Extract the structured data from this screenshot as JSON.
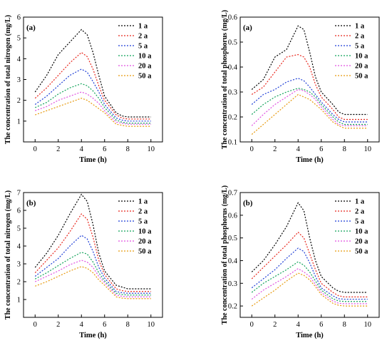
{
  "figure": {
    "legend_entries": [
      "1 a",
      "2 a",
      "5 a",
      "10 a",
      "20 a",
      "50 a"
    ],
    "series_colors": [
      "#000000",
      "#e8281e",
      "#1f3fd6",
      "#12a35a",
      "#e050e0",
      "#e79a0f"
    ]
  },
  "chart_data": [
    {
      "type": "line",
      "panel_label": "(a)",
      "xlabel": "Time (h)",
      "ylabel": "The concentration of total nitrogen (mg/L)",
      "xlim": [
        -1,
        11
      ],
      "ylim": [
        0,
        6
      ],
      "xticks": [
        0,
        2,
        4,
        6,
        8,
        10
      ],
      "yticks": [
        1,
        2,
        3,
        4,
        5,
        6
      ],
      "legend": "top-right",
      "grid": false,
      "x": [
        0,
        1,
        2,
        3,
        4,
        4.5,
        5,
        5.5,
        6,
        7,
        7.5,
        8,
        9,
        10
      ],
      "series": [
        {
          "name": "1 a",
          "values": [
            2.4,
            3.2,
            4.2,
            4.8,
            5.4,
            5.15,
            4.3,
            3.2,
            2.2,
            1.4,
            1.25,
            1.2,
            1.2,
            1.2
          ]
        },
        {
          "name": "2 a",
          "values": [
            2.1,
            2.6,
            3.2,
            3.8,
            4.3,
            4.1,
            3.5,
            2.7,
            2.0,
            1.3,
            1.15,
            1.1,
            1.1,
            1.1
          ]
        },
        {
          "name": "5 a",
          "values": [
            1.8,
            2.2,
            2.7,
            3.2,
            3.5,
            3.35,
            2.9,
            2.4,
            1.8,
            1.15,
            1.05,
            1.0,
            1.0,
            1.0
          ]
        },
        {
          "name": "10 a",
          "values": [
            1.65,
            1.9,
            2.3,
            2.6,
            2.8,
            2.7,
            2.45,
            2.1,
            1.65,
            1.05,
            0.95,
            0.9,
            0.9,
            0.9
          ]
        },
        {
          "name": "20 a",
          "values": [
            1.5,
            1.7,
            2.0,
            2.2,
            2.4,
            2.3,
            2.1,
            1.85,
            1.5,
            0.95,
            0.9,
            0.85,
            0.85,
            0.85
          ]
        },
        {
          "name": "50 a",
          "values": [
            1.3,
            1.5,
            1.7,
            1.9,
            2.1,
            2.0,
            1.8,
            1.6,
            1.4,
            0.85,
            0.8,
            0.75,
            0.75,
            0.75
          ]
        }
      ]
    },
    {
      "type": "line",
      "panel_label": "(a)",
      "xlabel": "Time (h)",
      "ylabel": "The concentration of total phosphorus (mg/L)",
      "xlim": [
        -1,
        11
      ],
      "ylim": [
        0.1,
        0.6
      ],
      "xticks": [
        0,
        2,
        4,
        6,
        8,
        10
      ],
      "yticks": [
        0.1,
        0.2,
        0.3,
        0.4,
        0.5,
        0.6
      ],
      "legend": "top-right",
      "grid": false,
      "x": [
        0,
        1,
        2,
        3,
        4,
        4.5,
        5,
        5.5,
        6,
        7,
        7.5,
        8,
        9,
        10
      ],
      "series": [
        {
          "name": "1 a",
          "values": [
            0.31,
            0.35,
            0.44,
            0.47,
            0.565,
            0.55,
            0.46,
            0.36,
            0.3,
            0.25,
            0.22,
            0.21,
            0.21,
            0.21
          ]
        },
        {
          "name": "2 a",
          "values": [
            0.29,
            0.32,
            0.38,
            0.44,
            0.45,
            0.44,
            0.4,
            0.33,
            0.28,
            0.23,
            0.2,
            0.19,
            0.19,
            0.19
          ]
        },
        {
          "name": "5 a",
          "values": [
            0.25,
            0.29,
            0.31,
            0.34,
            0.355,
            0.345,
            0.32,
            0.29,
            0.26,
            0.21,
            0.19,
            0.18,
            0.18,
            0.18
          ]
        },
        {
          "name": "10 a",
          "values": [
            0.21,
            0.25,
            0.28,
            0.3,
            0.315,
            0.31,
            0.3,
            0.28,
            0.25,
            0.2,
            0.18,
            0.17,
            0.17,
            0.17
          ]
        },
        {
          "name": "20 a",
          "values": [
            0.165,
            0.21,
            0.25,
            0.28,
            0.31,
            0.305,
            0.29,
            0.27,
            0.24,
            0.19,
            0.17,
            0.165,
            0.165,
            0.165
          ]
        },
        {
          "name": "50 a",
          "values": [
            0.13,
            0.17,
            0.21,
            0.25,
            0.29,
            0.28,
            0.27,
            0.25,
            0.23,
            0.18,
            0.165,
            0.155,
            0.155,
            0.155
          ]
        }
      ]
    },
    {
      "type": "line",
      "panel_label": "(b)",
      "xlabel": "Time (h)",
      "ylabel": "The concentration of total nitrogen (mg/L)",
      "xlim": [
        -1,
        11
      ],
      "ylim": [
        0,
        7
      ],
      "xticks": [
        0,
        2,
        4,
        6,
        8,
        10
      ],
      "yticks": [
        1,
        2,
        3,
        4,
        5,
        6,
        7
      ],
      "legend": "top-right",
      "grid": false,
      "x": [
        0,
        1,
        2,
        3,
        4,
        4.5,
        5,
        5.5,
        6,
        7,
        7.5,
        8,
        9,
        10
      ],
      "series": [
        {
          "name": "1 a",
          "values": [
            2.8,
            3.6,
            4.6,
            5.8,
            6.9,
            6.5,
            5.2,
            3.6,
            2.6,
            1.8,
            1.7,
            1.6,
            1.6,
            1.6
          ]
        },
        {
          "name": "2 a",
          "values": [
            2.5,
            3.2,
            3.9,
            4.8,
            5.8,
            5.5,
            4.5,
            3.2,
            2.4,
            1.6,
            1.5,
            1.45,
            1.45,
            1.45
          ]
        },
        {
          "name": "5 a",
          "values": [
            2.3,
            2.8,
            3.3,
            4.0,
            4.6,
            4.4,
            3.7,
            2.8,
            2.2,
            1.45,
            1.38,
            1.35,
            1.35,
            1.35
          ]
        },
        {
          "name": "10 a",
          "values": [
            2.15,
            2.5,
            2.9,
            3.3,
            3.65,
            3.55,
            3.1,
            2.5,
            2.05,
            1.35,
            1.28,
            1.25,
            1.25,
            1.25
          ]
        },
        {
          "name": "20 a",
          "values": [
            2.0,
            2.3,
            2.6,
            2.95,
            3.2,
            3.1,
            2.8,
            2.3,
            1.95,
            1.25,
            1.18,
            1.15,
            1.15,
            1.15
          ]
        },
        {
          "name": "50 a",
          "values": [
            1.75,
            2.0,
            2.3,
            2.6,
            2.85,
            2.75,
            2.5,
            2.1,
            1.8,
            1.15,
            1.08,
            1.05,
            1.05,
            1.05
          ]
        }
      ]
    },
    {
      "type": "line",
      "panel_label": "(b)",
      "xlabel": "Time (h)",
      "ylabel": "The concentration of total phosphorus (mg/L)",
      "xlim": [
        -1,
        11
      ],
      "ylim": [
        0.15,
        0.7
      ],
      "xticks": [
        0,
        2,
        4,
        6,
        8,
        10
      ],
      "yticks": [
        0.2,
        0.3,
        0.4,
        0.5,
        0.6,
        0.7
      ],
      "legend": "top-right",
      "grid": false,
      "x": [
        0,
        1,
        2,
        3,
        4,
        4.5,
        5,
        5.5,
        6,
        7,
        7.5,
        8,
        9,
        10
      ],
      "series": [
        {
          "name": "1 a",
          "values": [
            0.35,
            0.4,
            0.47,
            0.55,
            0.655,
            0.62,
            0.5,
            0.4,
            0.33,
            0.28,
            0.265,
            0.26,
            0.26,
            0.26
          ]
        },
        {
          "name": "2 a",
          "values": [
            0.32,
            0.37,
            0.42,
            0.47,
            0.525,
            0.5,
            0.43,
            0.36,
            0.3,
            0.26,
            0.245,
            0.24,
            0.24,
            0.24
          ]
        },
        {
          "name": "5 a",
          "values": [
            0.28,
            0.32,
            0.36,
            0.41,
            0.455,
            0.44,
            0.39,
            0.33,
            0.28,
            0.245,
            0.232,
            0.23,
            0.23,
            0.23
          ]
        },
        {
          "name": "10 a",
          "values": [
            0.26,
            0.3,
            0.33,
            0.36,
            0.395,
            0.38,
            0.35,
            0.31,
            0.27,
            0.232,
            0.222,
            0.22,
            0.22,
            0.22
          ]
        },
        {
          "name": "20 a",
          "values": [
            0.23,
            0.27,
            0.3,
            0.33,
            0.365,
            0.35,
            0.33,
            0.295,
            0.26,
            0.222,
            0.212,
            0.21,
            0.21,
            0.21
          ]
        },
        {
          "name": "50 a",
          "values": [
            0.2,
            0.235,
            0.27,
            0.31,
            0.345,
            0.335,
            0.315,
            0.285,
            0.25,
            0.212,
            0.203,
            0.2,
            0.2,
            0.2
          ]
        }
      ]
    }
  ]
}
